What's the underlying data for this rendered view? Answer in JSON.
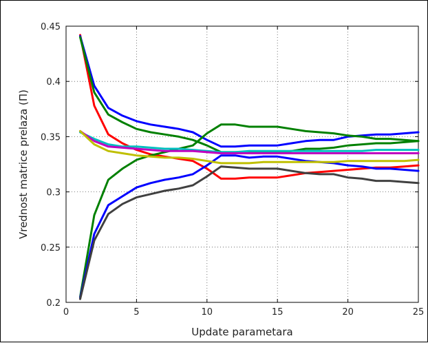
{
  "chart_data": {
    "type": "line",
    "title": "",
    "xlabel": "Update parametara",
    "ylabel": "Vrednost matrice prelaza (Π)",
    "xlim": [
      0,
      25
    ],
    "ylim": [
      0.2,
      0.45
    ],
    "xticks": [
      0,
      5,
      10,
      15,
      20,
      25
    ],
    "yticks": [
      0.2,
      0.25,
      0.3,
      0.35,
      0.4,
      0.45
    ],
    "xtick_labels": [
      "0",
      "5",
      "10",
      "15",
      "20",
      "25"
    ],
    "ytick_labels": [
      "0.2",
      "0.25",
      "0.3",
      "0.35",
      "0.4",
      "0.45"
    ],
    "grid": "dotted",
    "legend": "none",
    "x": [
      1,
      2,
      3,
      4,
      5,
      6,
      7,
      8,
      9,
      10,
      11,
      12,
      13,
      14,
      15,
      16,
      17,
      18,
      19,
      20,
      21,
      22,
      23,
      24,
      25
    ],
    "series": [
      {
        "color": "#ff0000",
        "values": [
          0.442,
          0.378,
          0.352,
          0.344,
          0.338,
          0.334,
          0.332,
          0.33,
          0.328,
          0.321,
          0.312,
          0.312,
          0.313,
          0.313,
          0.313,
          0.315,
          0.317,
          0.318,
          0.319,
          0.32,
          0.321,
          0.322,
          0.322,
          0.323,
          0.324
        ]
      },
      {
        "color": "#0000ff",
        "values": [
          0.441,
          0.396,
          0.376,
          0.369,
          0.364,
          0.361,
          0.359,
          0.357,
          0.354,
          0.347,
          0.341,
          0.341,
          0.342,
          0.342,
          0.342,
          0.344,
          0.346,
          0.347,
          0.347,
          0.35,
          0.351,
          0.352,
          0.352,
          0.353,
          0.354
        ]
      },
      {
        "color": "#008000",
        "values": [
          0.44,
          0.39,
          0.37,
          0.363,
          0.357,
          0.354,
          0.352,
          0.35,
          0.347,
          0.342,
          0.336,
          0.336,
          0.336,
          0.336,
          0.336,
          0.337,
          0.339,
          0.339,
          0.34,
          0.342,
          0.343,
          0.344,
          0.344,
          0.345,
          0.346
        ]
      },
      {
        "color": "#008000",
        "values": [
          0.205,
          0.279,
          0.311,
          0.321,
          0.329,
          0.333,
          0.336,
          0.339,
          0.342,
          0.353,
          0.361,
          0.361,
          0.359,
          0.359,
          0.359,
          0.357,
          0.355,
          0.354,
          0.353,
          0.351,
          0.35,
          0.348,
          0.348,
          0.347,
          0.346
        ]
      },
      {
        "color": "#0000ff",
        "values": [
          0.204,
          0.262,
          0.288,
          0.296,
          0.304,
          0.308,
          0.311,
          0.313,
          0.316,
          0.324,
          0.333,
          0.333,
          0.331,
          0.332,
          0.332,
          0.33,
          0.328,
          0.327,
          0.326,
          0.324,
          0.323,
          0.321,
          0.321,
          0.32,
          0.319
        ]
      },
      {
        "color": "#404040",
        "values": [
          0.203,
          0.256,
          0.28,
          0.289,
          0.295,
          0.298,
          0.301,
          0.303,
          0.306,
          0.314,
          0.323,
          0.322,
          0.321,
          0.321,
          0.321,
          0.319,
          0.317,
          0.316,
          0.316,
          0.313,
          0.312,
          0.31,
          0.31,
          0.309,
          0.308
        ]
      },
      {
        "color": "#00bfbf",
        "values": [
          0.354,
          0.348,
          0.343,
          0.341,
          0.341,
          0.34,
          0.339,
          0.339,
          0.338,
          0.337,
          0.336,
          0.336,
          0.337,
          0.337,
          0.337,
          0.337,
          0.337,
          0.337,
          0.337,
          0.337,
          0.337,
          0.338,
          0.338,
          0.338,
          0.338
        ]
      },
      {
        "color": "#bf00bf",
        "values": [
          0.355,
          0.346,
          0.341,
          0.34,
          0.339,
          0.338,
          0.337,
          0.337,
          0.337,
          0.336,
          0.335,
          0.335,
          0.335,
          0.335,
          0.335,
          0.335,
          0.335,
          0.335,
          0.335,
          0.335,
          0.335,
          0.335,
          0.335,
          0.335,
          0.335
        ]
      },
      {
        "color": "#bfbf00",
        "values": [
          0.355,
          0.343,
          0.337,
          0.335,
          0.333,
          0.332,
          0.331,
          0.331,
          0.33,
          0.328,
          0.326,
          0.326,
          0.326,
          0.327,
          0.327,
          0.327,
          0.327,
          0.327,
          0.327,
          0.328,
          0.328,
          0.328,
          0.328,
          0.328,
          0.329
        ]
      }
    ]
  }
}
